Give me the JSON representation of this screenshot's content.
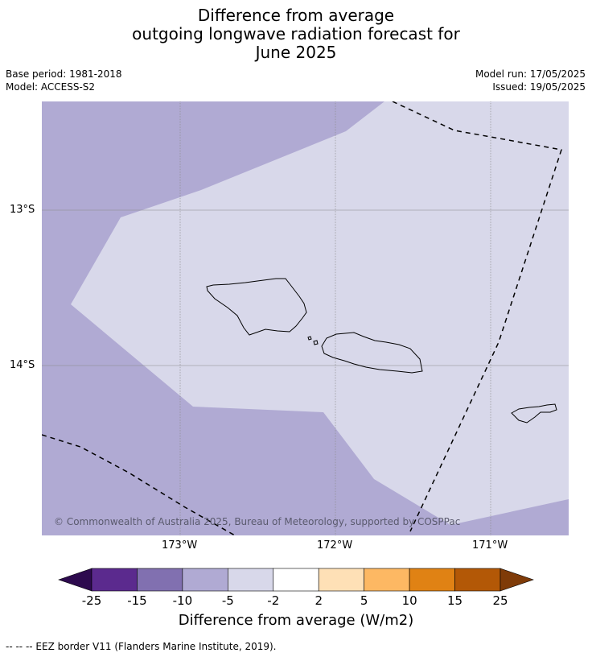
{
  "title": {
    "line1": "Difference from average",
    "line2": "outgoing longwave radiation forecast for",
    "line3": "June 2025"
  },
  "meta": {
    "base_period": "Base period: 1981-2018",
    "model": "Model: ACCESS-S2",
    "model_run": "Model run: 17/05/2025",
    "issued": "Issued: 19/05/2025"
  },
  "map": {
    "lat_labels": [
      "13°S",
      "14°S"
    ],
    "lon_labels": [
      "173°W",
      "172°W",
      "171°W"
    ],
    "copyright": "© Commonwealth of Australia 2025, Bureau of Meteorology, supported by COSPPac"
  },
  "colorbar": {
    "ticks": [
      "-25",
      "-15",
      "-10",
      "-5",
      "-2",
      "2",
      "5",
      "10",
      "15",
      "25"
    ],
    "colors": [
      "#5b2a8e",
      "#8170b0",
      "#b0aad3",
      "#d8d8ea",
      "#ffffff",
      "#fee0b6",
      "#fdb863",
      "#e08214",
      "#b35806"
    ],
    "under_color": "#2d0a4e",
    "over_color": "#7f3b08",
    "label": "Difference from average (W/m2)"
  },
  "footnote": "--  --  -- EEZ border V11 (Flanders Marine Institute, 2019)."
}
